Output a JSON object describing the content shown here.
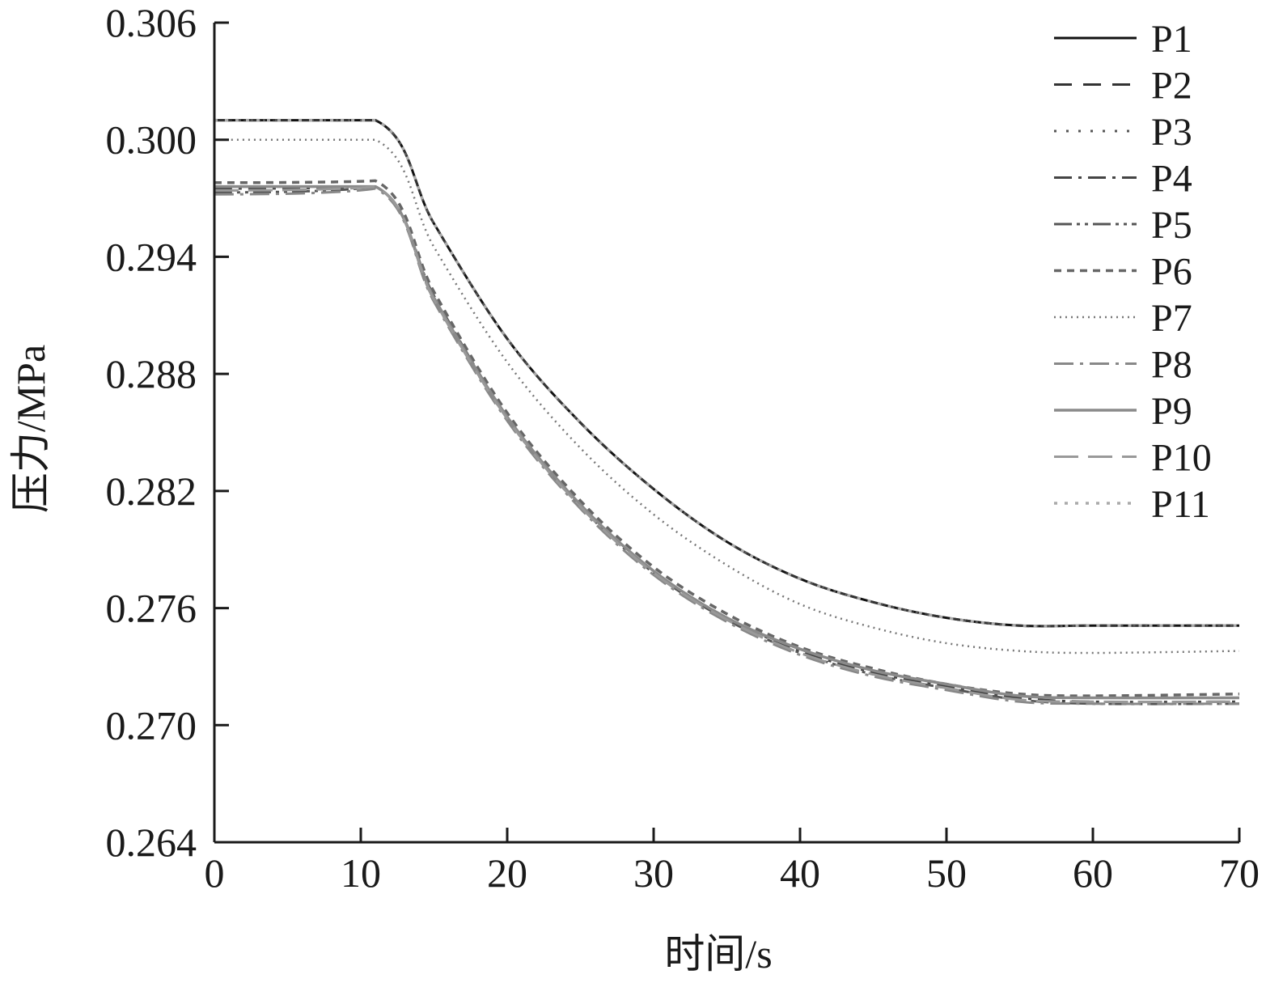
{
  "chart_data": {
    "type": "line",
    "title": "",
    "xlabel": "时间/s",
    "ylabel": "压力/MPa",
    "xlim": [
      0,
      70
    ],
    "ylim": [
      0.264,
      0.306
    ],
    "x_ticks": [
      "0",
      "10",
      "20",
      "30",
      "40",
      "50",
      "60",
      "70"
    ],
    "y_ticks": [
      "0.264",
      "0.270",
      "0.276",
      "0.282",
      "0.288",
      "0.294",
      "0.300",
      "0.306"
    ],
    "grid": false,
    "legend_position": "top-right",
    "series": [
      {
        "name": "P1",
        "color": "#111111",
        "dash": "",
        "width": 3,
        "x": [
          0,
          11,
          15,
          20,
          25,
          30,
          35,
          40,
          45,
          50,
          55,
          60,
          70
        ],
        "values": [
          0.301,
          0.301,
          0.2957,
          0.2898,
          0.2855,
          0.2821,
          0.2794,
          0.2775,
          0.2763,
          0.2755,
          0.2751,
          0.2751,
          0.2751
        ]
      },
      {
        "name": "P2",
        "color": "#333333",
        "dash": "22,14",
        "width": 3,
        "x": [
          0,
          11,
          15,
          20,
          25,
          30,
          35,
          40,
          45,
          50,
          55,
          60,
          70
        ],
        "values": [
          0.301,
          0.301,
          0.2957,
          0.2898,
          0.2855,
          0.2821,
          0.2794,
          0.2775,
          0.2763,
          0.2755,
          0.2751,
          0.2751,
          0.2751
        ]
      },
      {
        "name": "P3",
        "color": "#555555",
        "dash": "3,12",
        "width": 3,
        "x": [
          0,
          11,
          15,
          20,
          25,
          30,
          35,
          40,
          45,
          50,
          55,
          60,
          70
        ],
        "values": [
          0.301,
          0.301,
          0.2957,
          0.2898,
          0.2855,
          0.2821,
          0.2794,
          0.2775,
          0.2763,
          0.2755,
          0.2751,
          0.2751,
          0.2751
        ]
      },
      {
        "name": "P4",
        "color": "#444444",
        "dash": "22,8,4,8",
        "width": 3,
        "x": [
          0,
          11,
          15,
          20,
          25,
          30,
          35,
          40,
          45,
          50,
          55,
          60,
          70
        ],
        "values": [
          0.2975,
          0.2976,
          0.292,
          0.2858,
          0.2813,
          0.2779,
          0.2755,
          0.2738,
          0.2727,
          0.272,
          0.2714,
          0.2712,
          0.2712
        ]
      },
      {
        "name": "P5",
        "color": "#555555",
        "dash": "22,6,4,6,4,6",
        "width": 3,
        "x": [
          0,
          11,
          15,
          20,
          25,
          30,
          35,
          40,
          45,
          50,
          55,
          60,
          70
        ],
        "values": [
          0.2973,
          0.2976,
          0.2918,
          0.2857,
          0.2812,
          0.2778,
          0.2754,
          0.2737,
          0.2726,
          0.2719,
          0.2713,
          0.2711,
          0.2711
        ]
      },
      {
        "name": "P6",
        "color": "#666666",
        "dash": "9,7",
        "width": 3.5,
        "x": [
          0,
          11,
          15,
          20,
          25,
          30,
          35,
          40,
          45,
          50,
          55,
          60,
          70
        ],
        "values": [
          0.2978,
          0.2979,
          0.2922,
          0.286,
          0.2815,
          0.2781,
          0.2757,
          0.274,
          0.2729,
          0.2721,
          0.2716,
          0.2715,
          0.2716
        ]
      },
      {
        "name": "P7",
        "color": "#777777",
        "dash": "2,5",
        "width": 2.5,
        "x": [
          0,
          11,
          15,
          20,
          25,
          30,
          35,
          40,
          45,
          50,
          55,
          60,
          70
        ],
        "values": [
          0.3,
          0.3,
          0.2945,
          0.2886,
          0.2842,
          0.2808,
          0.2782,
          0.2762,
          0.275,
          0.2742,
          0.2738,
          0.2737,
          0.2738
        ]
      },
      {
        "name": "P8",
        "color": "#888888",
        "dash": "24,8,4,8",
        "width": 3,
        "x": [
          0,
          11,
          15,
          20,
          25,
          30,
          35,
          40,
          45,
          50,
          55,
          60,
          70
        ],
        "values": [
          0.2972,
          0.2975,
          0.2917,
          0.2856,
          0.2811,
          0.2777,
          0.2753,
          0.2736,
          0.2725,
          0.2718,
          0.2712,
          0.2711,
          0.2711
        ]
      },
      {
        "name": "P9",
        "color": "#8a8a8a",
        "dash": "",
        "width": 3.5,
        "x": [
          0,
          11,
          15,
          20,
          25,
          30,
          35,
          40,
          45,
          50,
          55,
          60,
          70
        ],
        "values": [
          0.2976,
          0.2976,
          0.2919,
          0.2858,
          0.2813,
          0.2779,
          0.2755,
          0.2739,
          0.2728,
          0.2721,
          0.2715,
          0.2714,
          0.2714
        ]
      },
      {
        "name": "P10",
        "color": "#999999",
        "dash": "30,12",
        "width": 3,
        "x": [
          0,
          11,
          15,
          20,
          25,
          30,
          35,
          40,
          45,
          50,
          55,
          60,
          70
        ],
        "values": [
          0.2974,
          0.2976,
          0.2918,
          0.2857,
          0.2812,
          0.2778,
          0.2754,
          0.2737,
          0.2726,
          0.2719,
          0.2713,
          0.2712,
          0.2712
        ]
      },
      {
        "name": "P11",
        "color": "#aaaaaa",
        "dash": "4,9",
        "width": 3.5,
        "x": [
          0,
          11,
          15,
          20,
          25,
          30,
          35,
          40,
          45,
          50,
          55,
          60,
          70
        ],
        "values": [
          0.301,
          0.301,
          0.2957,
          0.2898,
          0.2855,
          0.2821,
          0.2794,
          0.2775,
          0.2763,
          0.2755,
          0.2751,
          0.2751,
          0.2751
        ]
      }
    ]
  }
}
